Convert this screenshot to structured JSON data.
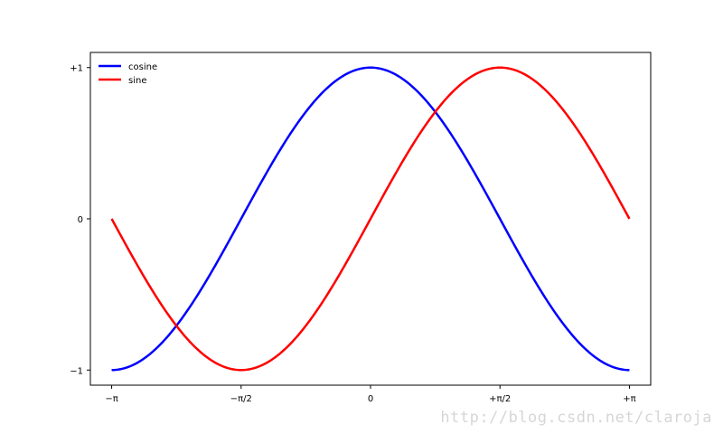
{
  "chart_data": {
    "type": "line",
    "title": "",
    "xlabel": "",
    "ylabel": "",
    "xlim": [
      -3.4,
      3.4
    ],
    "ylim": [
      -1.1,
      1.1
    ],
    "grid": false,
    "legend_position": "top-left",
    "x_ticks": [
      {
        "value": -3.14159265,
        "label": "−π"
      },
      {
        "value": -1.57079633,
        "label": "−π/2"
      },
      {
        "value": 0,
        "label": "0"
      },
      {
        "value": 1.57079633,
        "label": "+π/2"
      },
      {
        "value": 3.14159265,
        "label": "+π"
      }
    ],
    "y_ticks": [
      {
        "value": 1,
        "label": "+1"
      },
      {
        "value": 0,
        "label": "0"
      },
      {
        "value": -1,
        "label": "−1"
      }
    ],
    "x": [
      -3.1416,
      -2.7489,
      -2.3562,
      -1.9635,
      -1.5708,
      -1.1781,
      -0.7854,
      -0.3927,
      0,
      0.3927,
      0.7854,
      1.1781,
      1.5708,
      1.9635,
      2.3562,
      2.7489,
      3.1416
    ],
    "series": [
      {
        "name": "cosine",
        "color": "#0000ff",
        "values": [
          -1.0,
          -0.9239,
          -0.7071,
          -0.3827,
          0.0,
          0.3827,
          0.7071,
          0.9239,
          1.0,
          0.9239,
          0.7071,
          0.3827,
          0.0,
          -0.3827,
          -0.7071,
          -0.9239,
          -1.0
        ]
      },
      {
        "name": "sine",
        "color": "#ff0000",
        "values": [
          0.0,
          -0.3827,
          -0.7071,
          -0.9239,
          -1.0,
          -0.9239,
          -0.7071,
          -0.3827,
          0.0,
          0.3827,
          0.7071,
          0.9239,
          1.0,
          0.9239,
          0.7071,
          0.3827,
          0.0
        ]
      }
    ]
  },
  "watermark": "http://blog.csdn.net/claroja"
}
